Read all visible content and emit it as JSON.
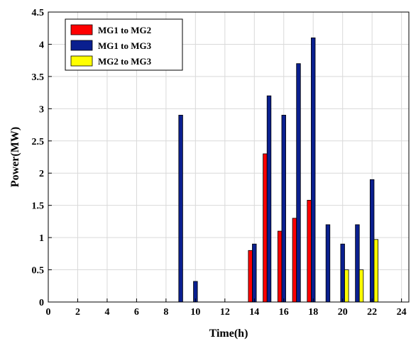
{
  "chart_data": {
    "type": "bar",
    "xlabel": "Time(h)",
    "ylabel": "Power(MW)",
    "xlim": [
      0,
      24.5
    ],
    "ylim": [
      0,
      4.5
    ],
    "xticks": [
      0,
      2,
      4,
      6,
      8,
      10,
      12,
      14,
      16,
      18,
      20,
      22,
      24
    ],
    "yticks": [
      0,
      0.5,
      1,
      1.5,
      2,
      2.5,
      3,
      3.5,
      4,
      4.5
    ],
    "grid": true,
    "legend_position": "top-left",
    "series": [
      {
        "name": "MG1 to MG2",
        "color": "#ff0000",
        "points": [
          [
            14,
            0.8
          ],
          [
            15,
            2.3
          ],
          [
            16,
            1.1
          ],
          [
            17,
            1.3
          ],
          [
            18,
            1.58
          ]
        ]
      },
      {
        "name": "MG1 to MG3",
        "color": "#0a1f8f",
        "points": [
          [
            9,
            2.9
          ],
          [
            10,
            0.32
          ],
          [
            14,
            0.9
          ],
          [
            15,
            3.2
          ],
          [
            16,
            2.9
          ],
          [
            17,
            3.7
          ],
          [
            18,
            4.1
          ],
          [
            19,
            1.2
          ],
          [
            20,
            0.9
          ],
          [
            21,
            1.2
          ],
          [
            22,
            1.9
          ]
        ]
      },
      {
        "name": "MG2 to MG3",
        "color": "#ffff00",
        "points": [
          [
            20,
            0.5
          ],
          [
            21,
            0.5
          ],
          [
            22,
            0.97
          ]
        ]
      }
    ]
  }
}
